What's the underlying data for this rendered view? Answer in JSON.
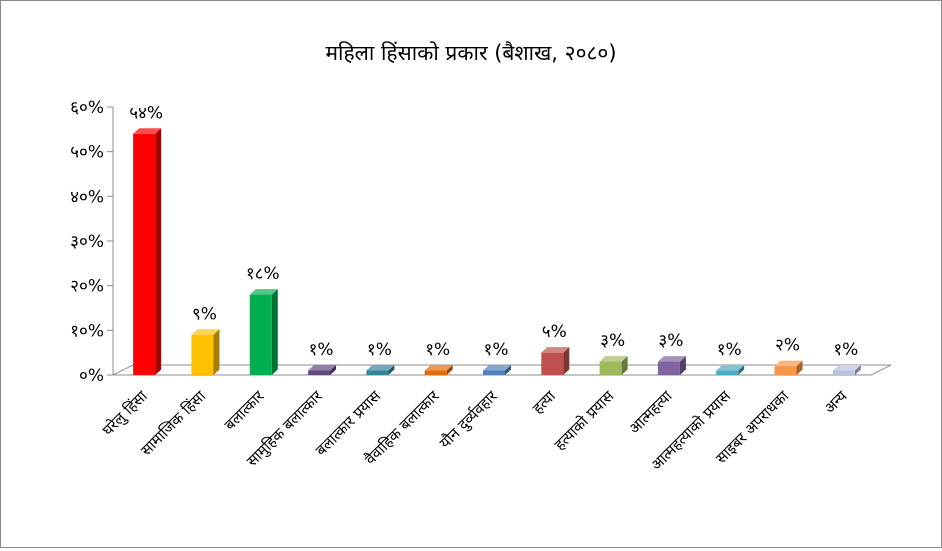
{
  "chart_data": {
    "type": "bar",
    "title": "महिला हिंसाको प्रकार (बैशाख, २०८०)",
    "xlabel": "",
    "ylabel": "",
    "ylim": [
      0,
      60
    ],
    "yticks": [
      "०%",
      "१०%",
      "२०%",
      "३०%",
      "४०%",
      "५०%",
      "६०%"
    ],
    "grid": false,
    "legend": "none",
    "categories": [
      "घरेलु हिंसा",
      "सामाजिक हिंसा",
      "बलात्कार",
      "सामुहिक बलात्कार",
      "बलात्कार प्रयास",
      "वैवाहिक बलात्कार",
      "यौन दुर्व्यवहार",
      "हत्या",
      "हत्याको प्रयास",
      "आत्महत्या",
      "आत्महत्याको प्रयास",
      "साइबर अपराधका",
      "अन्य"
    ],
    "values": [
      54,
      9,
      18,
      1,
      1,
      1,
      1,
      5,
      3,
      3,
      1,
      2,
      1
    ],
    "data_labels": [
      "५४%",
      "९%",
      "१८%",
      "१%",
      "१%",
      "१%",
      "१%",
      "५%",
      "३%",
      "३%",
      "१%",
      "२%",
      "१%"
    ],
    "colors": [
      "#ff0000",
      "#ffc000",
      "#00b050",
      "#604a7b",
      "#31859c",
      "#e46c0a",
      "#4f81bd",
      "#c0504d",
      "#9bbb59",
      "#8064a2",
      "#4bacc6",
      "#f79646",
      "#b9c3e0"
    ]
  }
}
